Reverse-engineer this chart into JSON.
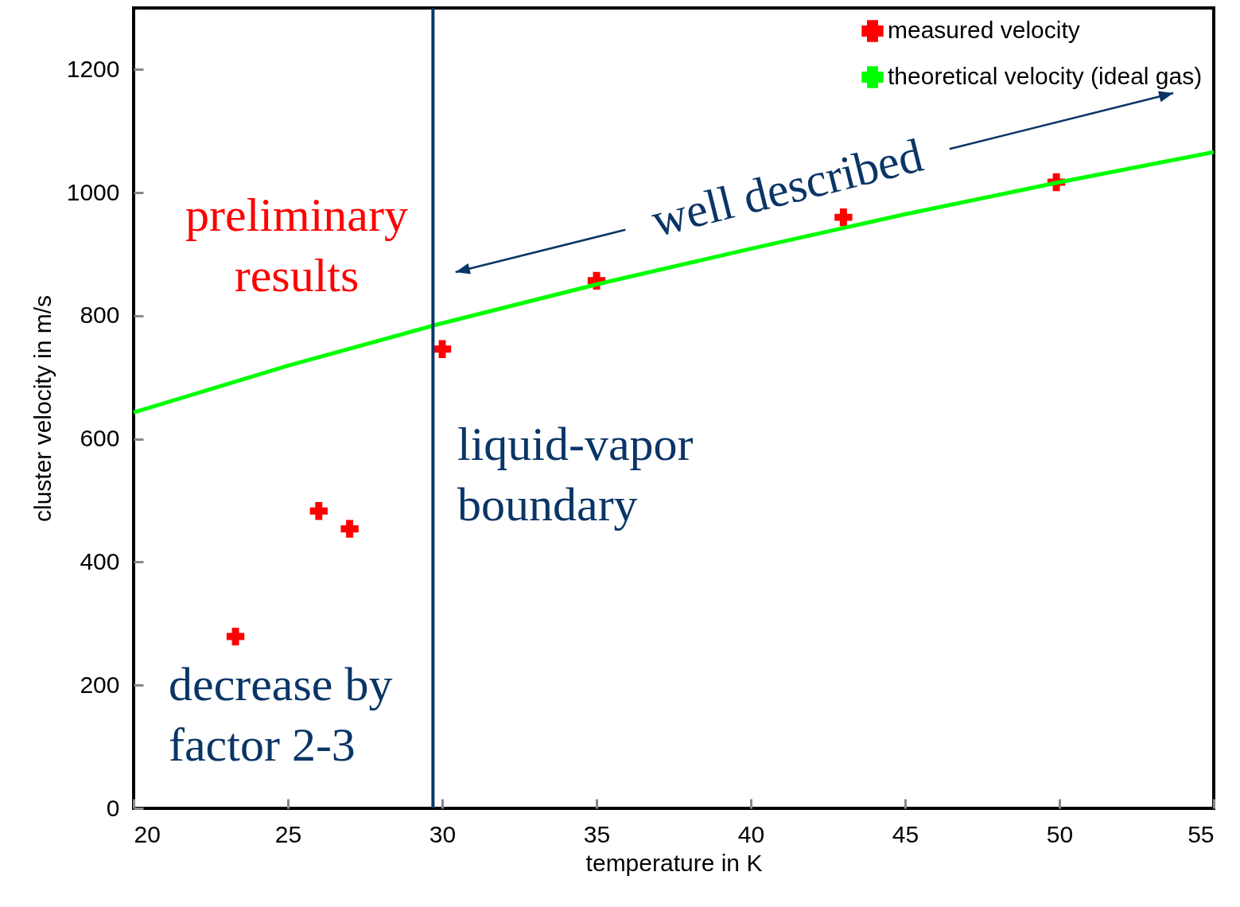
{
  "chart_data": {
    "type": "scatter",
    "xlabel": "temperature in K",
    "ylabel": "cluster velocity in m/s",
    "xlim": [
      20,
      55
    ],
    "xticks": [
      20,
      25,
      30,
      35,
      40,
      45,
      50,
      55
    ],
    "ylim": [
      0,
      1300
    ],
    "yticks": [
      0,
      200,
      400,
      600,
      800,
      1000,
      1200
    ],
    "legend": "top right",
    "grid": false,
    "series": [
      {
        "name": "measured velocity",
        "color": "#ff0000",
        "marker": "cross",
        "x": [
          23.3,
          26.0,
          27.0,
          30.0,
          35.0,
          43.0,
          49.9
        ],
        "values": [
          279,
          483,
          454,
          746,
          857,
          960,
          1017
        ]
      },
      {
        "name": "theoretical velocity (ideal gas)",
        "color": "#00ff00",
        "type": "line",
        "line_style": "solid",
        "x": [
          20,
          25,
          30,
          35,
          40,
          45,
          50,
          55
        ],
        "values": [
          643,
          719,
          788,
          851,
          909,
          965,
          1017,
          1066
        ]
      }
    ],
    "ref_lines": [
      {
        "axis": "x",
        "value": 29.7,
        "color": "#0a3566"
      }
    ],
    "annotations": [
      "preliminary results",
      "liquid-vapor boundary",
      "decrease by factor 2-3",
      "well described"
    ]
  }
}
